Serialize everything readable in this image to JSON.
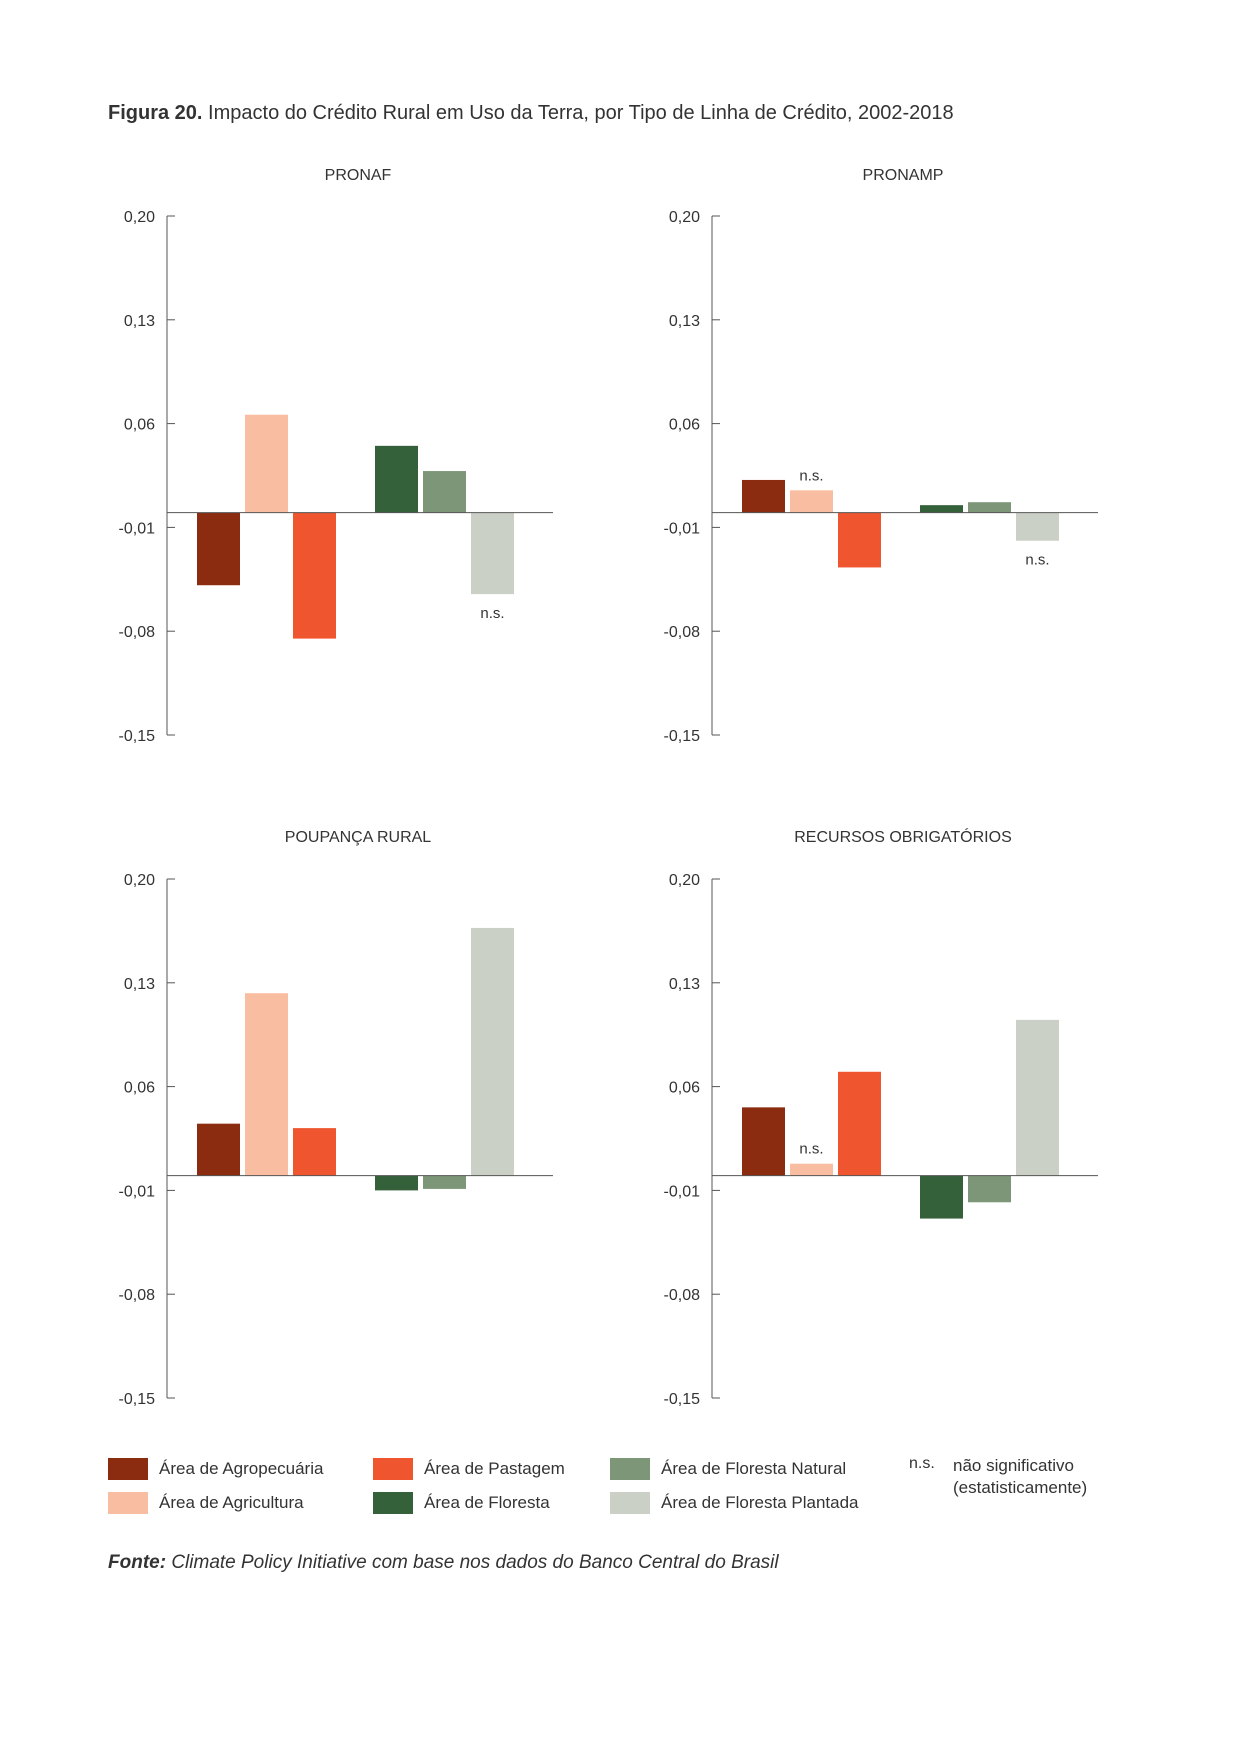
{
  "figure": {
    "label": "Figura 20.",
    "title": "Impacto do Crédito Rural em Uso da Terra, por Tipo de Linha de Crédito, 2002-2018"
  },
  "source": {
    "label": "Fonte:",
    "text": "Climate Policy Initiative com base nos dados do Banco Central do Brasil"
  },
  "legend": {
    "items": [
      {
        "label": "Área de Agropecuária",
        "color": "#8b2c10"
      },
      {
        "label": "Área de Pastagem",
        "color": "#ef5630"
      },
      {
        "label": "Área de Floresta Natural",
        "color": "#7d9677"
      },
      {
        "label": "Área de Agricultura",
        "color": "#f9bea2"
      },
      {
        "label": "Área de Floresta",
        "color": "#35613a"
      },
      {
        "label": "Área de Floresta Plantada",
        "color": "#cbd0c6"
      }
    ],
    "ns_key": "n.s.",
    "ns_desc_line1": "não significativo",
    "ns_desc_line2": "(estatisticamente)"
  },
  "chart_data": [
    {
      "type": "bar",
      "title": "PRONAF",
      "ylim": [
        -0.15,
        0.2
      ],
      "yticks": [
        0.2,
        0.13,
        0.06,
        -0.01,
        -0.08,
        -0.15
      ],
      "ytick_labels": [
        "0,20",
        "0,13",
        "0,06",
        "-0,01",
        "-0,08",
        "-0,15"
      ],
      "baseline": 0,
      "series": [
        {
          "name": "Área de Agropecuária",
          "value": -0.049,
          "ns": false
        },
        {
          "name": "Área de Agricultura",
          "value": 0.066,
          "ns": false
        },
        {
          "name": "Área de Pastagem",
          "value": -0.085,
          "ns": false
        },
        {
          "name": "Área de Floresta",
          "value": 0.045,
          "ns": false
        },
        {
          "name": "Área de Floresta Natural",
          "value": 0.028,
          "ns": false
        },
        {
          "name": "Área de Floresta Plantada",
          "value": -0.055,
          "ns": true
        }
      ]
    },
    {
      "type": "bar",
      "title": "PRONAMP",
      "ylim": [
        -0.15,
        0.2
      ],
      "yticks": [
        0.2,
        0.13,
        0.06,
        -0.01,
        -0.08,
        -0.15
      ],
      "ytick_labels": [
        "0,20",
        "0,13",
        "0,06",
        "-0,01",
        "-0,08",
        "-0,15"
      ],
      "baseline": 0,
      "series": [
        {
          "name": "Área de Agropecuária",
          "value": 0.022,
          "ns": false
        },
        {
          "name": "Área de Agricultura",
          "value": 0.015,
          "ns": true
        },
        {
          "name": "Área de Pastagem",
          "value": -0.037,
          "ns": false
        },
        {
          "name": "Área de Floresta",
          "value": 0.005,
          "ns": false
        },
        {
          "name": "Área de Floresta Natural",
          "value": 0.007,
          "ns": false
        },
        {
          "name": "Área de Floresta Plantada",
          "value": -0.019,
          "ns": true
        }
      ]
    },
    {
      "type": "bar",
      "title": "POUPANÇA RURAL",
      "ylim": [
        -0.15,
        0.2
      ],
      "yticks": [
        0.2,
        0.13,
        0.06,
        -0.01,
        -0.08,
        -0.15
      ],
      "ytick_labels": [
        "0,20",
        "0,13",
        "0,06",
        "-0,01",
        "-0,08",
        "-0,15"
      ],
      "baseline": 0,
      "series": [
        {
          "name": "Área de Agropecuária",
          "value": 0.035,
          "ns": false
        },
        {
          "name": "Área de Agricultura",
          "value": 0.123,
          "ns": false
        },
        {
          "name": "Área de Pastagem",
          "value": 0.032,
          "ns": false
        },
        {
          "name": "Área de Floresta",
          "value": -0.01,
          "ns": false
        },
        {
          "name": "Área de Floresta Natural",
          "value": -0.009,
          "ns": false
        },
        {
          "name": "Área de Floresta Plantada",
          "value": 0.167,
          "ns": false
        }
      ]
    },
    {
      "type": "bar",
      "title": "RECURSOS OBRIGATÓRIOS",
      "ylim": [
        -0.15,
        0.2
      ],
      "yticks": [
        0.2,
        0.13,
        0.06,
        -0.01,
        -0.08,
        -0.15
      ],
      "ytick_labels": [
        "0,20",
        "0,13",
        "0,06",
        "-0,01",
        "-0,08",
        "-0,15"
      ],
      "baseline": 0,
      "series": [
        {
          "name": "Área de Agropecuária",
          "value": 0.046,
          "ns": false
        },
        {
          "name": "Área de Agricultura",
          "value": 0.008,
          "ns": true
        },
        {
          "name": "Área de Pastagem",
          "value": 0.07,
          "ns": false
        },
        {
          "name": "Área de Floresta",
          "value": -0.029,
          "ns": false
        },
        {
          "name": "Área de Floresta Natural",
          "value": -0.018,
          "ns": false
        },
        {
          "name": "Área de Floresta Plantada",
          "value": 0.105,
          "ns": false
        }
      ]
    }
  ]
}
